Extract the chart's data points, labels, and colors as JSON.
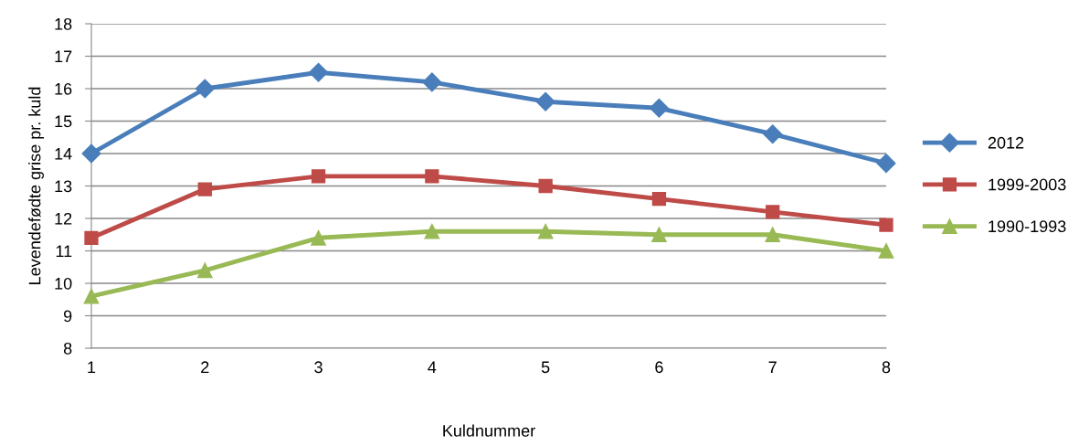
{
  "chart_data": {
    "type": "line",
    "xlabel": "Kuldnummer",
    "ylabel": "Levendefødte grise pr. kuld",
    "categories": [
      "1",
      "2",
      "3",
      "4",
      "5",
      "6",
      "7",
      "8"
    ],
    "series": [
      {
        "name": "2012",
        "color": "#4a7ebb",
        "marker": "diamond",
        "values": [
          14.0,
          16.0,
          16.5,
          16.2,
          15.6,
          15.4,
          14.6,
          13.7
        ]
      },
      {
        "name": "1999-2003",
        "color": "#be4b48",
        "marker": "square",
        "values": [
          11.4,
          12.9,
          13.3,
          13.3,
          13.0,
          12.6,
          12.2,
          11.8
        ]
      },
      {
        "name": "1990-1993",
        "color": "#98b954",
        "marker": "triangle",
        "values": [
          9.6,
          10.4,
          11.4,
          11.6,
          11.6,
          11.5,
          11.5,
          11.0
        ]
      }
    ],
    "ylim": [
      8,
      18
    ],
    "yticks": [
      8,
      9,
      10,
      11,
      12,
      13,
      14,
      15,
      16,
      17,
      18
    ],
    "grid": "y",
    "legend": "right",
    "line_style": "solid"
  }
}
